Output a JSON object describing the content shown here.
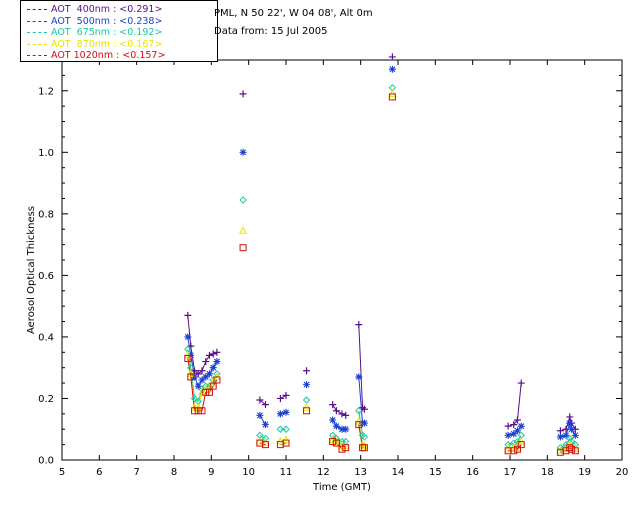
{
  "header": {
    "site": "PML, N 50 22', W 04 08', Alt 0m",
    "date_line": "Data from: 15 Jul 2005"
  },
  "legend": [
    {
      "label": "AOT  400nm : <0.291>",
      "color": "#5a0f8c"
    },
    {
      "label": "AOT  500nm : <0.238>",
      "color": "#1a3fd6"
    },
    {
      "label": "AOT  675nm : <0.192>",
      "color": "#1ec8a0"
    },
    {
      "label": "AOT  870nm : <0.167>",
      "color": "#e6e600"
    },
    {
      "label": "AOT 1020nm : <0.157>",
      "color": "#d01010"
    }
  ],
  "chart_data": {
    "type": "scatter",
    "xlabel": "Time (GMT)",
    "ylabel": "Aerosol Optical Thickness",
    "xlim": [
      5,
      20
    ],
    "ylim": [
      0.0,
      1.3
    ],
    "x_ticks": [
      "5",
      "6",
      "7",
      "8",
      "9",
      "10",
      "11",
      "12",
      "13",
      "14",
      "15",
      "16",
      "17",
      "18",
      "19",
      "20"
    ],
    "y_ticks": [
      "0.0",
      "0.2",
      "0.4",
      "0.6",
      "0.8",
      "1.0",
      "1.2"
    ],
    "series": [
      {
        "name": "AOT  400nm : <0.291>",
        "color": "#5a0f8c",
        "marker": "plus",
        "x": [
          8.37,
          8.45,
          8.55,
          8.65,
          8.75,
          8.85,
          8.95,
          9.05,
          9.15,
          9.85,
          10.3,
          10.45,
          10.85,
          11.0,
          11.55,
          12.25,
          12.35,
          12.5,
          12.6,
          12.95,
          13.05,
          13.1,
          13.85,
          16.95,
          17.1,
          17.2,
          17.3,
          18.35,
          18.5,
          18.6,
          18.65,
          18.75
        ],
        "y": [
          0.47,
          0.37,
          0.29,
          0.28,
          0.29,
          0.32,
          0.34,
          0.345,
          0.35,
          1.19,
          0.195,
          0.18,
          0.2,
          0.21,
          0.29,
          0.18,
          0.16,
          0.15,
          0.145,
          0.44,
          0.17,
          0.165,
          1.31,
          0.11,
          0.115,
          0.13,
          0.25,
          0.095,
          0.1,
          0.14,
          0.12,
          0.1
        ],
        "connect": [
          [
            0,
            8
          ],
          [
            10,
            11
          ],
          [
            12,
            13
          ],
          [
            15,
            18
          ],
          [
            19,
            21
          ],
          [
            23,
            26
          ],
          [
            27,
            31
          ]
        ]
      },
      {
        "name": "AOT  500nm : <0.238>",
        "color": "#1a3fd6",
        "marker": "asterisk",
        "x": [
          8.37,
          8.45,
          8.55,
          8.65,
          8.75,
          8.85,
          8.95,
          9.05,
          9.15,
          9.85,
          10.3,
          10.45,
          10.85,
          11.0,
          11.55,
          12.25,
          12.35,
          12.5,
          12.6,
          12.95,
          13.05,
          13.1,
          13.85,
          16.95,
          17.1,
          17.2,
          17.3,
          18.35,
          18.5,
          18.6,
          18.65,
          18.75
        ],
        "y": [
          0.4,
          0.34,
          0.27,
          0.24,
          0.26,
          0.27,
          0.28,
          0.3,
          0.32,
          1.0,
          0.145,
          0.115,
          0.15,
          0.155,
          0.245,
          0.13,
          0.11,
          0.1,
          0.1,
          0.27,
          0.12,
          0.12,
          1.27,
          0.08,
          0.085,
          0.095,
          0.11,
          0.075,
          0.08,
          0.12,
          0.1,
          0.08
        ],
        "connect": [
          [
            0,
            8
          ],
          [
            10,
            11
          ],
          [
            12,
            13
          ],
          [
            15,
            18
          ],
          [
            19,
            21
          ],
          [
            23,
            26
          ],
          [
            27,
            31
          ]
        ]
      },
      {
        "name": "AOT  675nm : <0.192>",
        "color": "#1ec8a0",
        "marker": "diamond",
        "x": [
          8.37,
          8.45,
          8.55,
          8.65,
          8.75,
          8.85,
          8.95,
          9.05,
          9.15,
          9.85,
          10.3,
          10.45,
          10.85,
          11.0,
          11.55,
          12.25,
          12.35,
          12.5,
          12.6,
          12.95,
          13.05,
          13.1,
          13.85,
          16.95,
          17.1,
          17.2,
          17.3,
          18.35,
          18.5,
          18.6,
          18.65,
          18.75
        ],
        "y": [
          0.36,
          0.3,
          0.2,
          0.19,
          0.23,
          0.24,
          0.24,
          0.26,
          0.28,
          0.845,
          0.08,
          0.07,
          0.1,
          0.1,
          0.195,
          0.08,
          0.07,
          0.06,
          0.06,
          0.16,
          0.08,
          0.075,
          1.21,
          0.05,
          0.055,
          0.06,
          0.08,
          0.04,
          0.05,
          0.07,
          0.06,
          0.05
        ],
        "connect": [
          [
            0,
            8
          ],
          [
            10,
            11
          ],
          [
            12,
            13
          ],
          [
            15,
            18
          ],
          [
            19,
            21
          ],
          [
            23,
            26
          ],
          [
            27,
            31
          ]
        ]
      },
      {
        "name": "AOT  870nm : <0.167>",
        "color": "#e6e600",
        "marker": "triangle",
        "x": [
          8.37,
          8.45,
          8.55,
          8.65,
          8.75,
          8.85,
          8.95,
          9.05,
          9.15,
          9.85,
          10.3,
          10.45,
          10.85,
          11.0,
          11.55,
          12.25,
          12.35,
          12.5,
          12.6,
          12.95,
          13.05,
          13.1,
          13.85,
          16.95,
          17.1,
          17.2,
          17.3,
          18.35,
          18.5,
          18.6,
          18.65,
          18.75
        ],
        "y": [
          0.34,
          0.28,
          0.17,
          0.17,
          0.22,
          0.23,
          0.23,
          0.25,
          0.27,
          0.745,
          0.06,
          0.055,
          0.06,
          0.065,
          0.17,
          0.065,
          0.06,
          0.045,
          0.045,
          0.125,
          0.05,
          0.045,
          1.19,
          0.035,
          0.04,
          0.04,
          0.06,
          0.03,
          0.035,
          0.05,
          0.04,
          0.035
        ],
        "connect": [
          [
            0,
            8
          ],
          [
            10,
            11
          ],
          [
            12,
            13
          ],
          [
            15,
            18
          ],
          [
            19,
            21
          ],
          [
            23,
            26
          ],
          [
            27,
            31
          ]
        ]
      },
      {
        "name": "AOT 1020nm : <0.157>",
        "color": "#d01010",
        "marker": "square",
        "x": [
          8.37,
          8.45,
          8.55,
          8.65,
          8.75,
          8.85,
          8.95,
          9.05,
          9.15,
          9.85,
          10.3,
          10.45,
          10.85,
          11.0,
          11.55,
          12.25,
          12.35,
          12.5,
          12.6,
          12.95,
          13.05,
          13.1,
          13.85,
          16.95,
          17.1,
          17.2,
          17.3,
          18.35,
          18.5,
          18.6,
          18.65,
          18.75
        ],
        "y": [
          0.33,
          0.27,
          0.16,
          0.16,
          0.16,
          0.22,
          0.22,
          0.24,
          0.26,
          0.69,
          0.055,
          0.05,
          0.05,
          0.055,
          0.16,
          0.06,
          0.055,
          0.035,
          0.04,
          0.115,
          0.04,
          0.04,
          1.18,
          0.03,
          0.03,
          0.035,
          0.05,
          0.025,
          0.03,
          0.04,
          0.035,
          0.03
        ],
        "connect": [
          [
            0,
            8
          ],
          [
            10,
            11
          ],
          [
            12,
            13
          ],
          [
            15,
            18
          ],
          [
            19,
            21
          ],
          [
            23,
            26
          ],
          [
            27,
            31
          ]
        ]
      }
    ]
  }
}
